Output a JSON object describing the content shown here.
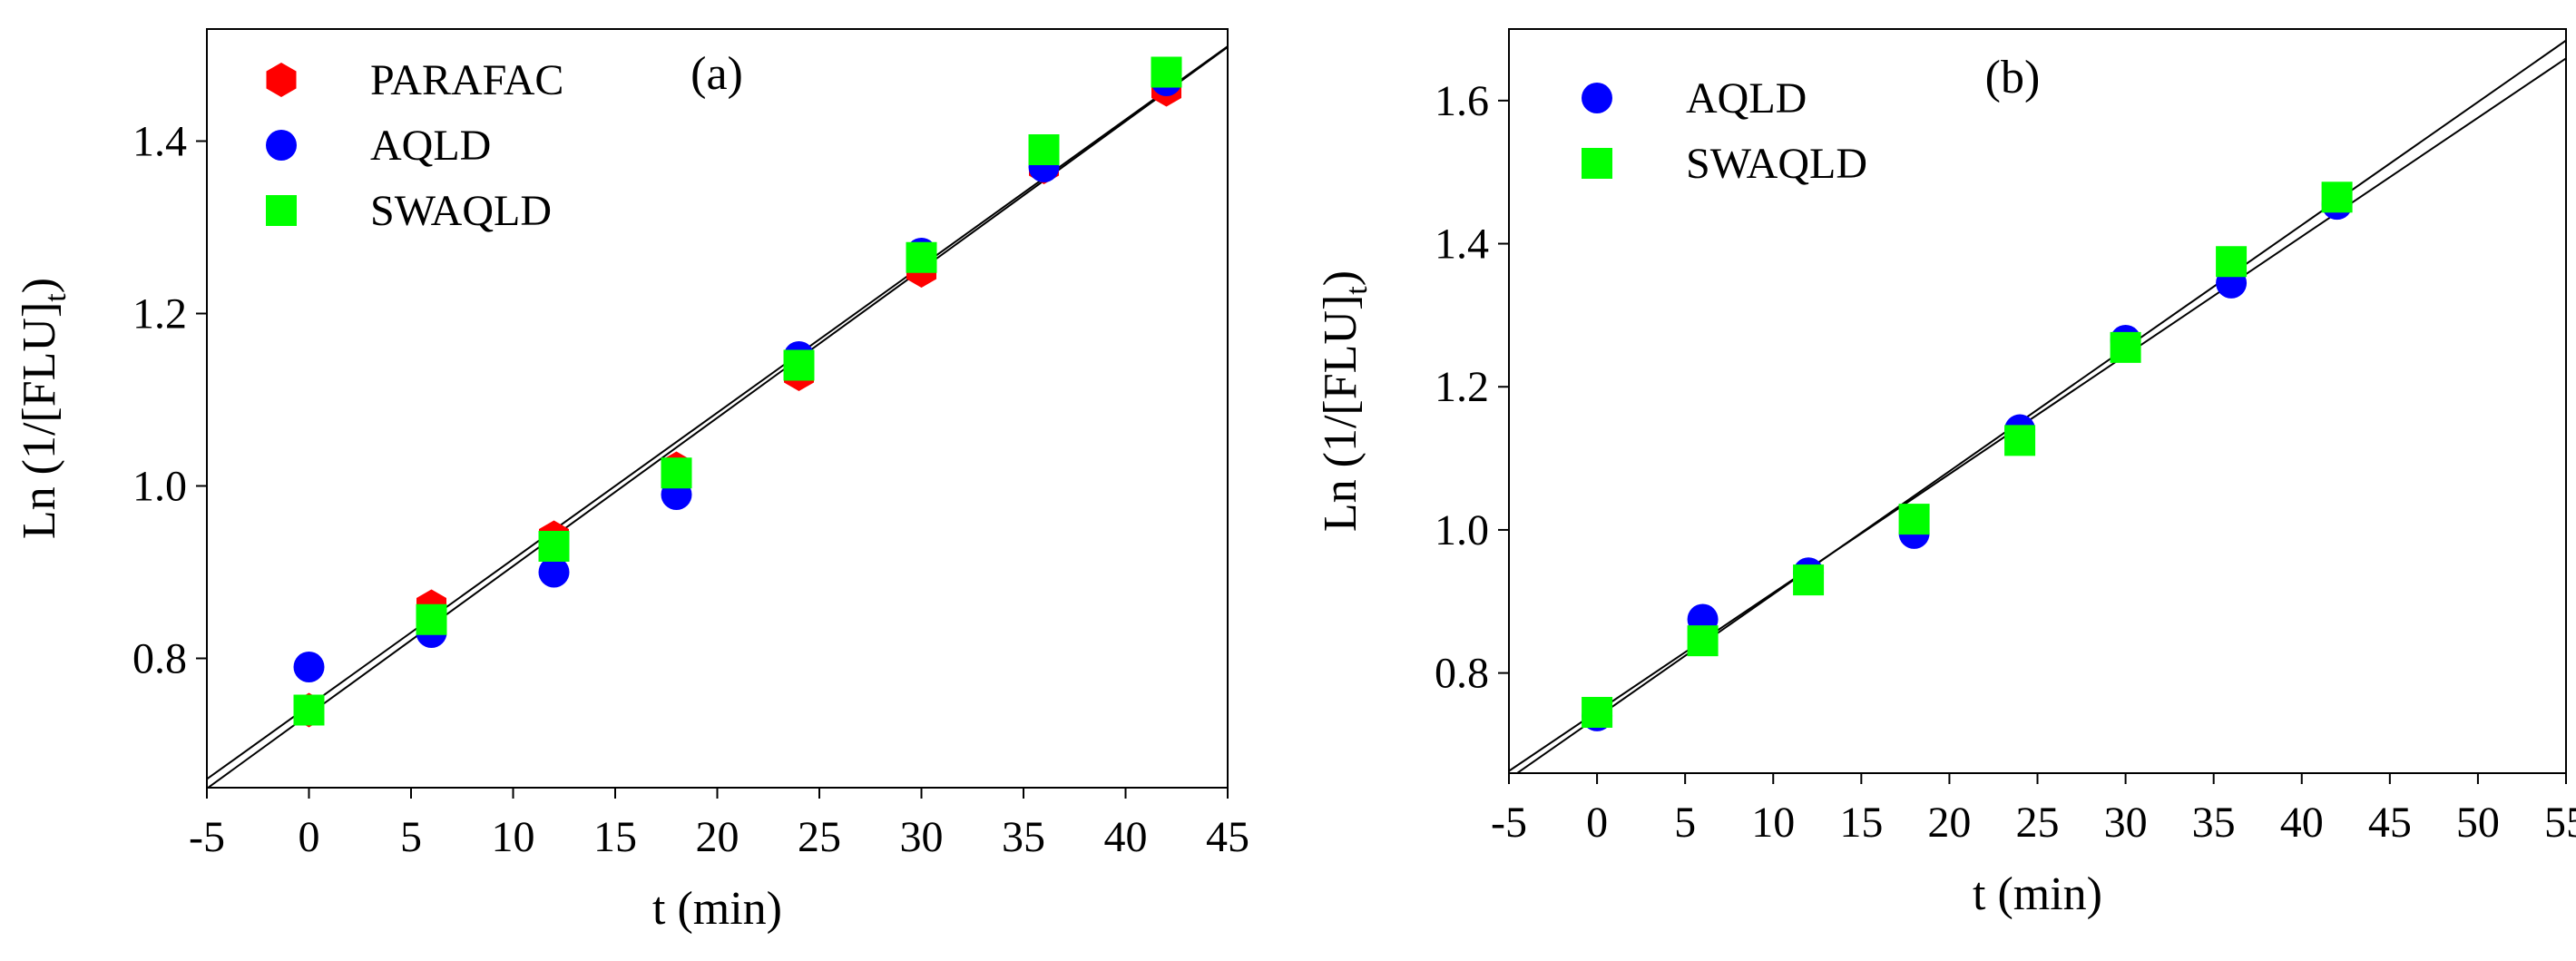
{
  "chart_data": [
    {
      "type": "scatter",
      "panel_label": "(a)",
      "xlabel": "t (min)",
      "ylabel_main": "Ln (1/[FLU]",
      "ylabel_sub": "t",
      "ylabel_close": ")",
      "xlim": [
        -5,
        45
      ],
      "ylim": [
        0.65,
        1.53
      ],
      "xticks": [
        -5,
        0,
        5,
        10,
        15,
        20,
        25,
        30,
        35,
        40,
        45
      ],
      "xtick_labels": [
        "-5",
        "0",
        "5",
        "10",
        "15",
        "20",
        "25",
        "30",
        "35",
        "40",
        "45"
      ],
      "yticks": [
        0.8,
        1.0,
        1.2,
        1.4
      ],
      "ytick_labels": [
        "0.8",
        "1.0",
        "1.2",
        "1.4"
      ],
      "legend_position": "top-left",
      "x": [
        0,
        6,
        12,
        18,
        24,
        30,
        36,
        42
      ],
      "series": [
        {
          "name": "PARAFAC",
          "marker": "hexagon",
          "color": "#ff0000",
          "values": [
            0.74,
            0.86,
            0.94,
            1.02,
            1.13,
            1.25,
            1.37,
            1.46
          ]
        },
        {
          "name": "AQLD",
          "marker": "circle",
          "color": "#0000ff",
          "values": [
            0.79,
            0.83,
            0.9,
            0.99,
            1.15,
            1.27,
            1.37,
            1.47
          ]
        },
        {
          "name": "SWAQLD",
          "marker": "square",
          "color": "#00ff00",
          "values": [
            0.74,
            0.845,
            0.93,
            1.015,
            1.14,
            1.265,
            1.39,
            1.48
          ]
        }
      ],
      "fit_lines": [
        {
          "intercept": 0.735,
          "slope": 0.0172
        },
        {
          "intercept": 0.745,
          "slope": 0.017
        }
      ]
    },
    {
      "type": "scatter",
      "panel_label": "(b)",
      "xlabel": "t (min)",
      "ylabel_main": "Ln (1/[FLU]",
      "ylabel_sub": "t",
      "ylabel_close": ")",
      "xlim": [
        -5,
        55
      ],
      "ylim": [
        0.66,
        1.7
      ],
      "xticks": [
        -5,
        0,
        5,
        10,
        15,
        20,
        25,
        30,
        35,
        40,
        45,
        50,
        55
      ],
      "xtick_labels": [
        "-5",
        "0",
        "5",
        "10",
        "15",
        "20",
        "25",
        "30",
        "35",
        "40",
        "45",
        "50",
        "55"
      ],
      "yticks": [
        0.8,
        1.0,
        1.2,
        1.4,
        1.6
      ],
      "ytick_labels": [
        "0.8",
        "1.0",
        "1.2",
        "1.4",
        "1.6"
      ],
      "legend_position": "top-left",
      "x": [
        0,
        6,
        12,
        18,
        24,
        30,
        36,
        42
      ],
      "series": [
        {
          "name": "AQLD",
          "marker": "circle",
          "color": "#0000ff",
          "values": [
            0.74,
            0.875,
            0.94,
            0.995,
            1.14,
            1.265,
            1.345,
            1.455
          ]
        },
        {
          "name": "SWAQLD",
          "marker": "square",
          "color": "#00ff00",
          "values": [
            0.745,
            0.845,
            0.93,
            1.015,
            1.125,
            1.255,
            1.375,
            1.465
          ]
        }
      ],
      "fit_lines": [
        {
          "intercept": 0.738,
          "slope": 0.0172
        },
        {
          "intercept": 0.746,
          "slope": 0.0166
        }
      ]
    }
  ]
}
